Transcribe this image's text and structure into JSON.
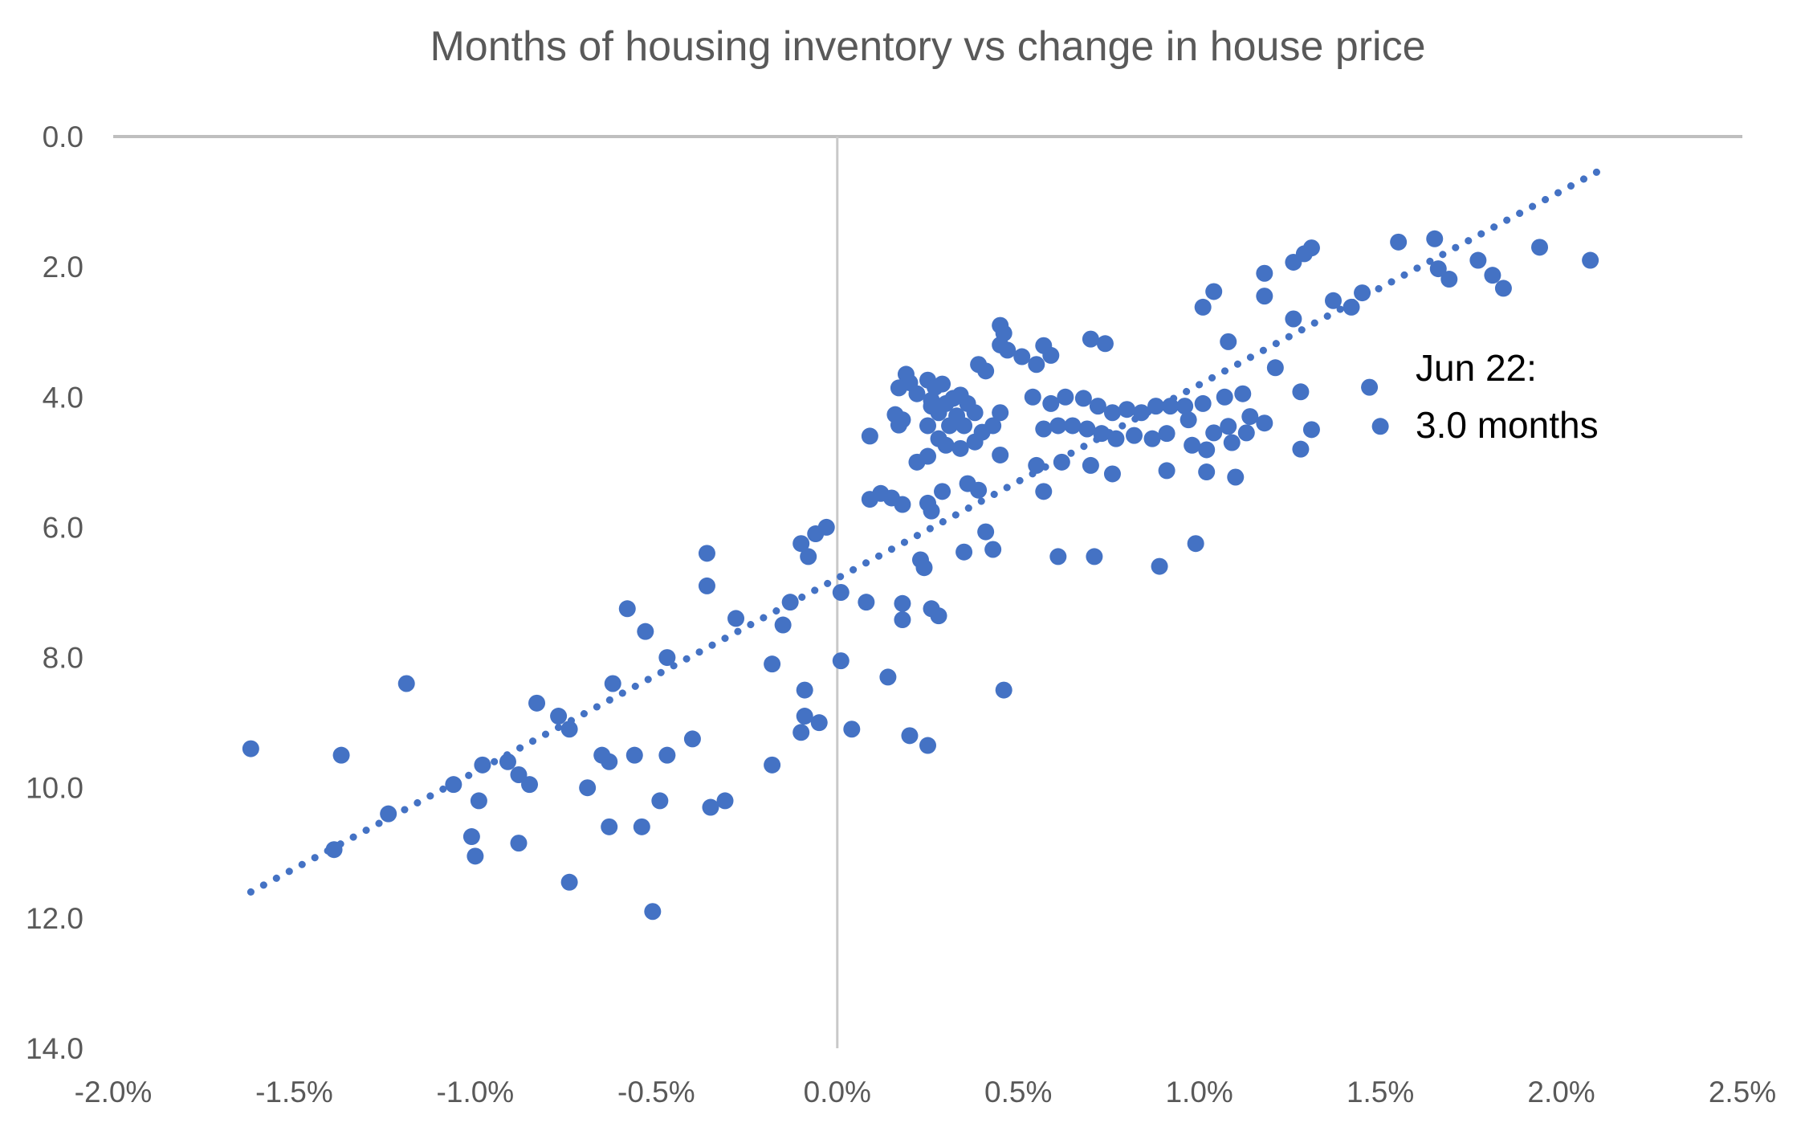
{
  "chart_data": {
    "type": "scatter",
    "title": "Months of housing inventory vs change in house price",
    "xlabel": "",
    "ylabel": "",
    "x_axis": {
      "tick_labels": [
        "-2.0%",
        "-1.5%",
        "-1.0%",
        "-0.5%",
        "0.0%",
        "0.5%",
        "1.0%",
        "1.5%",
        "2.0%",
        "2.5%"
      ],
      "tick_values": [
        -2.0,
        -1.5,
        -1.0,
        -0.5,
        0.0,
        0.5,
        1.0,
        1.5,
        2.0,
        2.5
      ],
      "range": [
        -2.0,
        2.5
      ]
    },
    "y_axis": {
      "tick_labels": [
        "0.0",
        "2.0",
        "4.0",
        "6.0",
        "8.0",
        "10.0",
        "12.0",
        "14.0"
      ],
      "tick_values": [
        0,
        2,
        4,
        6,
        8,
        10,
        12,
        14
      ],
      "range": [
        0,
        14
      ],
      "inverted": true
    },
    "grid": {
      "horizontal_line_at_y": 0,
      "vertical_line_at_x": 0,
      "other_gridlines": false
    },
    "legend": "none",
    "annotation": {
      "line1": "Jun 22:",
      "line2": "3.0 months",
      "anchor_x_pct": 1.6,
      "anchor_y_months": 3.4
    },
    "trendline": {
      "style": "dotted",
      "x1_pct": -1.62,
      "y1_months": 11.6,
      "x2_pct": 2.13,
      "y2_months": 0.45
    },
    "series": [
      {
        "name": "monthly-observations",
        "marker": "circle",
        "points": [
          [
            -1.62,
            9.4
          ],
          [
            -1.37,
            9.5
          ],
          [
            -1.19,
            8.4
          ],
          [
            -1.24,
            10.4
          ],
          [
            -1.39,
            10.95
          ],
          [
            -1.06,
            9.95
          ],
          [
            -0.99,
            10.2
          ],
          [
            -1.01,
            10.75
          ],
          [
            -1.0,
            11.05
          ],
          [
            -0.88,
            10.85
          ],
          [
            -0.98,
            9.65
          ],
          [
            -0.91,
            9.6
          ],
          [
            -0.88,
            9.8
          ],
          [
            -0.85,
            9.95
          ],
          [
            -0.69,
            10.0
          ],
          [
            -0.63,
            9.6
          ],
          [
            -0.63,
            10.6
          ],
          [
            -0.74,
            11.45
          ],
          [
            -0.83,
            8.7
          ],
          [
            -0.77,
            8.9
          ],
          [
            -0.74,
            9.1
          ],
          [
            -0.51,
            11.9
          ],
          [
            -0.62,
            8.4
          ],
          [
            -0.58,
            7.25
          ],
          [
            -0.53,
            7.6
          ],
          [
            -0.47,
            8.0
          ],
          [
            -0.36,
            6.4
          ],
          [
            -0.36,
            6.9
          ],
          [
            -0.65,
            9.5
          ],
          [
            -0.56,
            9.5
          ],
          [
            -0.47,
            9.5
          ],
          [
            -0.49,
            10.2
          ],
          [
            -0.35,
            10.3
          ],
          [
            -0.31,
            10.2
          ],
          [
            -0.54,
            10.6
          ],
          [
            -0.28,
            7.4
          ],
          [
            -0.4,
            9.25
          ],
          [
            -0.18,
            8.1
          ],
          [
            -0.15,
            7.5
          ],
          [
            -0.13,
            7.15
          ],
          [
            -0.18,
            9.65
          ],
          [
            -0.09,
            8.5
          ],
          [
            -0.09,
            8.9
          ],
          [
            -0.05,
            9.0
          ],
          [
            -0.1,
            9.15
          ],
          [
            0.04,
            9.1
          ],
          [
            0.2,
            9.2
          ],
          [
            0.25,
            9.35
          ],
          [
            0.46,
            8.5
          ],
          [
            0.14,
            8.3
          ],
          [
            0.01,
            8.05
          ],
          [
            0.01,
            7.0
          ],
          [
            0.08,
            7.15
          ],
          [
            0.18,
            7.17
          ],
          [
            0.18,
            7.42
          ],
          [
            0.26,
            7.25
          ],
          [
            0.28,
            7.36
          ],
          [
            -0.08,
            6.45
          ],
          [
            -0.1,
            6.25
          ],
          [
            -0.06,
            6.1
          ],
          [
            -0.03,
            6.0
          ],
          [
            0.12,
            5.48
          ],
          [
            0.15,
            5.55
          ],
          [
            0.09,
            5.57
          ],
          [
            0.18,
            5.65
          ],
          [
            0.25,
            5.63
          ],
          [
            0.26,
            5.75
          ],
          [
            0.29,
            5.45
          ],
          [
            0.36,
            5.33
          ],
          [
            0.39,
            5.43
          ],
          [
            0.23,
            6.5
          ],
          [
            0.24,
            6.62
          ],
          [
            0.35,
            6.38
          ],
          [
            0.41,
            6.07
          ],
          [
            0.43,
            6.34
          ],
          [
            0.57,
            5.45
          ],
          [
            0.61,
            6.45
          ],
          [
            0.71,
            6.45
          ],
          [
            0.89,
            6.6
          ],
          [
            0.99,
            6.25
          ],
          [
            0.45,
            2.9
          ],
          [
            0.46,
            3.02
          ],
          [
            0.45,
            3.2
          ],
          [
            0.47,
            3.28
          ],
          [
            0.51,
            3.38
          ],
          [
            0.39,
            3.5
          ],
          [
            0.41,
            3.6
          ],
          [
            0.57,
            3.21
          ],
          [
            0.59,
            3.36
          ],
          [
            0.55,
            3.5
          ],
          [
            0.7,
            3.11
          ],
          [
            0.74,
            3.18
          ],
          [
            1.08,
            3.15
          ],
          [
            0.19,
            3.65
          ],
          [
            0.2,
            3.78
          ],
          [
            0.17,
            3.86
          ],
          [
            0.22,
            3.95
          ],
          [
            0.25,
            3.74
          ],
          [
            0.27,
            3.85
          ],
          [
            0.29,
            3.8
          ],
          [
            0.26,
            4.05
          ],
          [
            0.16,
            4.27
          ],
          [
            0.18,
            4.35
          ],
          [
            0.17,
            4.43
          ],
          [
            0.09,
            4.6
          ],
          [
            0.26,
            4.14
          ],
          [
            0.28,
            4.24
          ],
          [
            0.3,
            4.1
          ],
          [
            0.32,
            4.02
          ],
          [
            0.34,
            3.97
          ],
          [
            0.36,
            4.1
          ],
          [
            0.38,
            4.24
          ],
          [
            0.33,
            4.29
          ],
          [
            0.54,
            4.0
          ],
          [
            0.59,
            4.1
          ],
          [
            0.63,
            4.0
          ],
          [
            0.68,
            4.02
          ],
          [
            0.72,
            4.14
          ],
          [
            0.76,
            4.24
          ],
          [
            0.8,
            4.19
          ],
          [
            0.84,
            4.24
          ],
          [
            0.88,
            4.14
          ],
          [
            0.92,
            4.14
          ],
          [
            0.96,
            4.14
          ],
          [
            1.01,
            4.1
          ],
          [
            1.07,
            4.0
          ],
          [
            1.12,
            3.95
          ],
          [
            0.31,
            4.44
          ],
          [
            0.35,
            4.44
          ],
          [
            0.25,
            4.44
          ],
          [
            0.28,
            4.64
          ],
          [
            0.3,
            4.74
          ],
          [
            0.34,
            4.79
          ],
          [
            0.38,
            4.69
          ],
          [
            0.4,
            4.54
          ],
          [
            0.43,
            4.44
          ],
          [
            0.45,
            4.24
          ],
          [
            0.57,
            4.49
          ],
          [
            0.61,
            4.44
          ],
          [
            0.65,
            4.44
          ],
          [
            0.69,
            4.49
          ],
          [
            0.73,
            4.56
          ],
          [
            0.77,
            4.64
          ],
          [
            0.82,
            4.59
          ],
          [
            0.87,
            4.64
          ],
          [
            0.91,
            4.56
          ],
          [
            0.98,
            4.74
          ],
          [
            1.02,
            4.81
          ],
          [
            0.97,
            4.35
          ],
          [
            1.04,
            4.55
          ],
          [
            1.08,
            4.45
          ],
          [
            1.13,
            4.55
          ],
          [
            1.09,
            4.7
          ],
          [
            1.14,
            4.3
          ],
          [
            1.18,
            4.4
          ],
          [
            1.31,
            4.5
          ],
          [
            1.28,
            4.8
          ],
          [
            0.25,
            4.91
          ],
          [
            0.45,
            4.89
          ],
          [
            0.22,
            5.0
          ],
          [
            0.55,
            5.05
          ],
          [
            0.62,
            5.0
          ],
          [
            0.7,
            5.05
          ],
          [
            0.76,
            5.18
          ],
          [
            0.91,
            5.13
          ],
          [
            1.1,
            5.23
          ],
          [
            1.02,
            5.15
          ],
          [
            1.47,
            3.85
          ],
          [
            1.5,
            4.45
          ],
          [
            1.21,
            3.55
          ],
          [
            1.28,
            3.92
          ],
          [
            1.26,
            2.8
          ],
          [
            1.01,
            2.62
          ],
          [
            1.04,
            2.38
          ],
          [
            1.18,
            2.1
          ],
          [
            1.18,
            2.45
          ],
          [
            1.26,
            1.93
          ],
          [
            1.29,
            1.8
          ],
          [
            1.31,
            1.71
          ],
          [
            1.37,
            2.52
          ],
          [
            1.42,
            2.62
          ],
          [
            1.45,
            2.4
          ],
          [
            1.55,
            1.62
          ],
          [
            1.65,
            1.57
          ],
          [
            1.66,
            2.03
          ],
          [
            1.69,
            2.19
          ],
          [
            1.77,
            1.9
          ],
          [
            1.81,
            2.13
          ],
          [
            1.84,
            2.33
          ],
          [
            1.94,
            1.7
          ],
          [
            2.08,
            1.9
          ]
        ]
      }
    ],
    "colors": {
      "point_fill": "#4472C4",
      "trendline": "#4472C4",
      "axis_text": "#595959",
      "title_text": "#595959",
      "annotation_text": "#000000",
      "gridline": "#BFBFBF",
      "background": "#FFFFFF"
    }
  }
}
